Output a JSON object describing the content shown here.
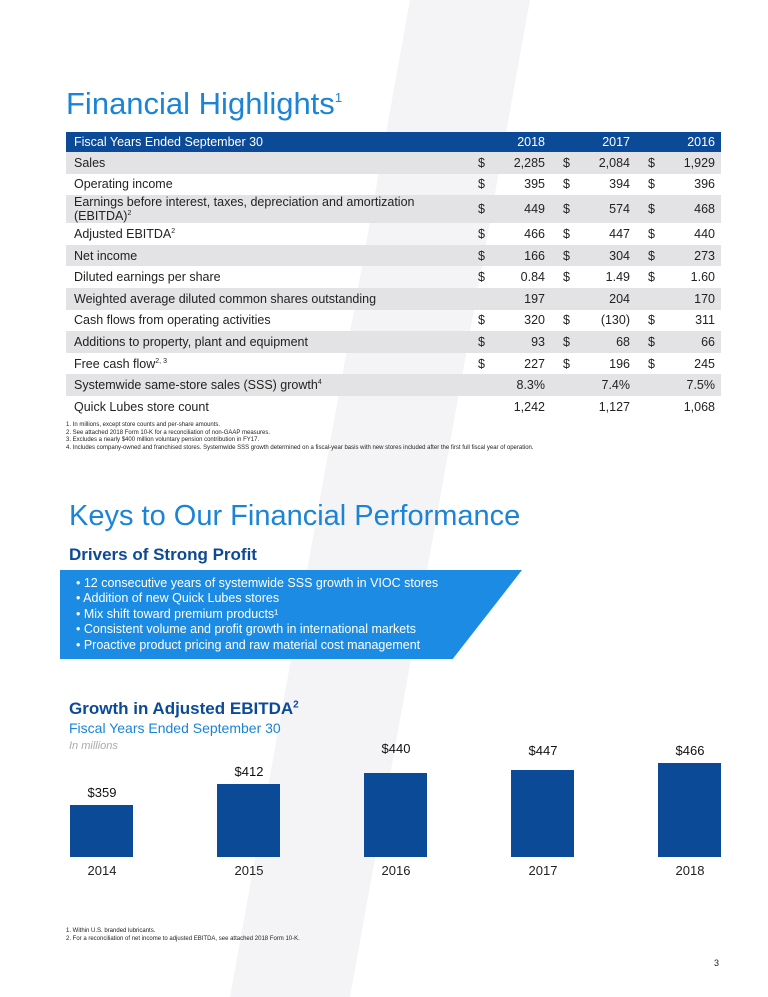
{
  "title": "Financial Highlights",
  "title_sup": "1",
  "table": {
    "header": [
      "Fiscal Years Ended September 30",
      "2018",
      "2017",
      "2016"
    ],
    "rows": [
      {
        "label": "Sales",
        "sup": "",
        "v": [
          [
            "$",
            "2,285"
          ],
          [
            "$",
            "2,084"
          ],
          [
            "$",
            "1,929"
          ]
        ]
      },
      {
        "label": "Operating income",
        "sup": "",
        "v": [
          [
            "$",
            "395"
          ],
          [
            "$",
            "394"
          ],
          [
            "$",
            "396"
          ]
        ]
      },
      {
        "label": "Earnings before interest, taxes, depreciation and amortization (EBITDA)",
        "sup": "2",
        "v": [
          [
            "$",
            "449"
          ],
          [
            "$",
            "574"
          ],
          [
            "$",
            "468"
          ]
        ]
      },
      {
        "label": "Adjusted EBITDA",
        "sup": "2",
        "v": [
          [
            "$",
            "466"
          ],
          [
            "$",
            "447"
          ],
          [
            "$",
            "440"
          ]
        ]
      },
      {
        "label": "Net income",
        "sup": "",
        "v": [
          [
            "$",
            "166"
          ],
          [
            "$",
            "304"
          ],
          [
            "$",
            "273"
          ]
        ]
      },
      {
        "label": "Diluted earnings per share",
        "sup": "",
        "v": [
          [
            "$",
            "0.84"
          ],
          [
            "$",
            "1.49"
          ],
          [
            "$",
            "1.60"
          ]
        ]
      },
      {
        "label": "Weighted average diluted common shares outstanding",
        "sup": "",
        "v": [
          [
            "",
            "197"
          ],
          [
            "",
            "204"
          ],
          [
            "",
            "170"
          ]
        ]
      },
      {
        "label": "Cash flows from operating activities",
        "sup": "",
        "v": [
          [
            "$",
            "320"
          ],
          [
            "$",
            "(130)"
          ],
          [
            "$",
            "311"
          ]
        ]
      },
      {
        "label": "Additions to property, plant and equipment",
        "sup": "",
        "v": [
          [
            "$",
            "93"
          ],
          [
            "$",
            "68"
          ],
          [
            "$",
            "66"
          ]
        ]
      },
      {
        "label": "Free cash flow",
        "sup": "2, 3",
        "v": [
          [
            "$",
            "227"
          ],
          [
            "$",
            "196"
          ],
          [
            "$",
            "245"
          ]
        ]
      },
      {
        "label": "Systemwide same-store sales (SSS) growth",
        "sup": "4",
        "v": [
          [
            "",
            "8.3%"
          ],
          [
            "",
            "7.4%"
          ],
          [
            "",
            "7.5%"
          ]
        ]
      },
      {
        "label": "Quick Lubes store count",
        "sup": "",
        "v": [
          [
            "",
            "1,242"
          ],
          [
            "",
            "1,127"
          ],
          [
            "",
            "1,068"
          ]
        ]
      }
    ]
  },
  "notes": [
    "1. In millions, except store counts and per-share amounts.",
    "2. See attached 2018 Form 10-K for a reconciliation of non-GAAP measures.",
    "3. Excludes a nearly $400 million voluntary pension contribution in FY17.",
    "4. Includes company-owned and franchised stores. Systemwide SSS growth determined on a fiscal-year basis with new stores included after the first full fiscal year of operation."
  ],
  "keys_title": "Keys to Our Financial Performance",
  "drivers_title": "Drivers of Strong Profit",
  "drivers": [
    "• 12 consecutive years of systemwide SSS growth in VIOC stores",
    "• Addition of new Quick Lubes stores",
    "• Mix shift toward premium products¹",
    "• Consistent volume and profit growth in international markets",
    "• Proactive product pricing and raw material cost management"
  ],
  "chart_data": {
    "type": "bar",
    "title": "Growth in Adjusted EBITDA",
    "title_sup": "2",
    "subtitle": "Fiscal Years Ended September 30",
    "unit": "In millions",
    "categories": [
      "2014",
      "2015",
      "2016",
      "2017",
      "2018"
    ],
    "values": [
      359,
      412,
      440,
      447,
      466
    ],
    "labels": [
      "$359",
      "$412",
      "$440",
      "$447",
      "$466"
    ],
    "ylim": [
      226,
      466
    ]
  },
  "footnotes": [
    "1. Within U.S. branded lubricants.",
    "2. For a reconciliation of net income to adjusted EBITDA, see attached 2018 Form 10-K."
  ],
  "page": "3"
}
